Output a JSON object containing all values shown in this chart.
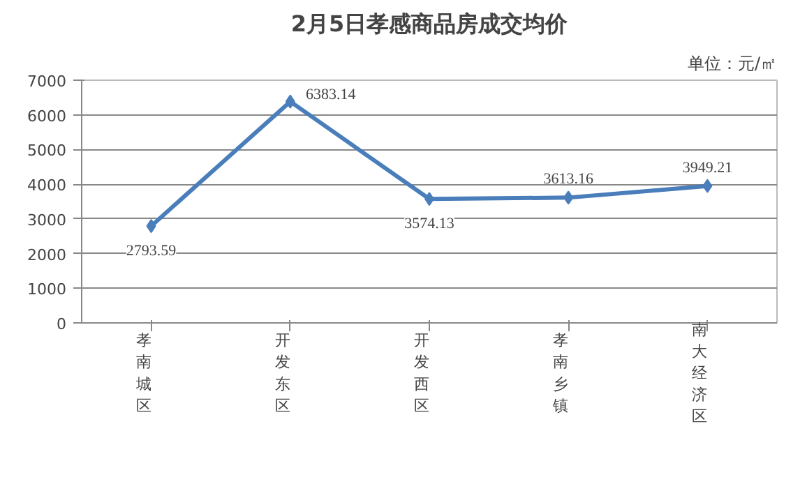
{
  "chart_data": {
    "type": "line",
    "title": "2月5日孝感商品房成交均价",
    "ylabel": "单位：元/㎡",
    "categories": [
      "孝南城区",
      "开发东区",
      "开发西区",
      "孝南乡镇",
      "南大经济区"
    ],
    "series": [
      {
        "color": "#4a7ebb",
        "values": [
          2793.59,
          6383.14,
          3574.13,
          3613.16,
          3949.21
        ]
      }
    ],
    "ylim": [
      0,
      7000
    ],
    "yticks": [
      0,
      1000,
      2000,
      3000,
      4000,
      5000,
      6000,
      7000
    ],
    "grid": "y",
    "marker": "diamond",
    "line_style": "solid",
    "data_labels": true
  }
}
